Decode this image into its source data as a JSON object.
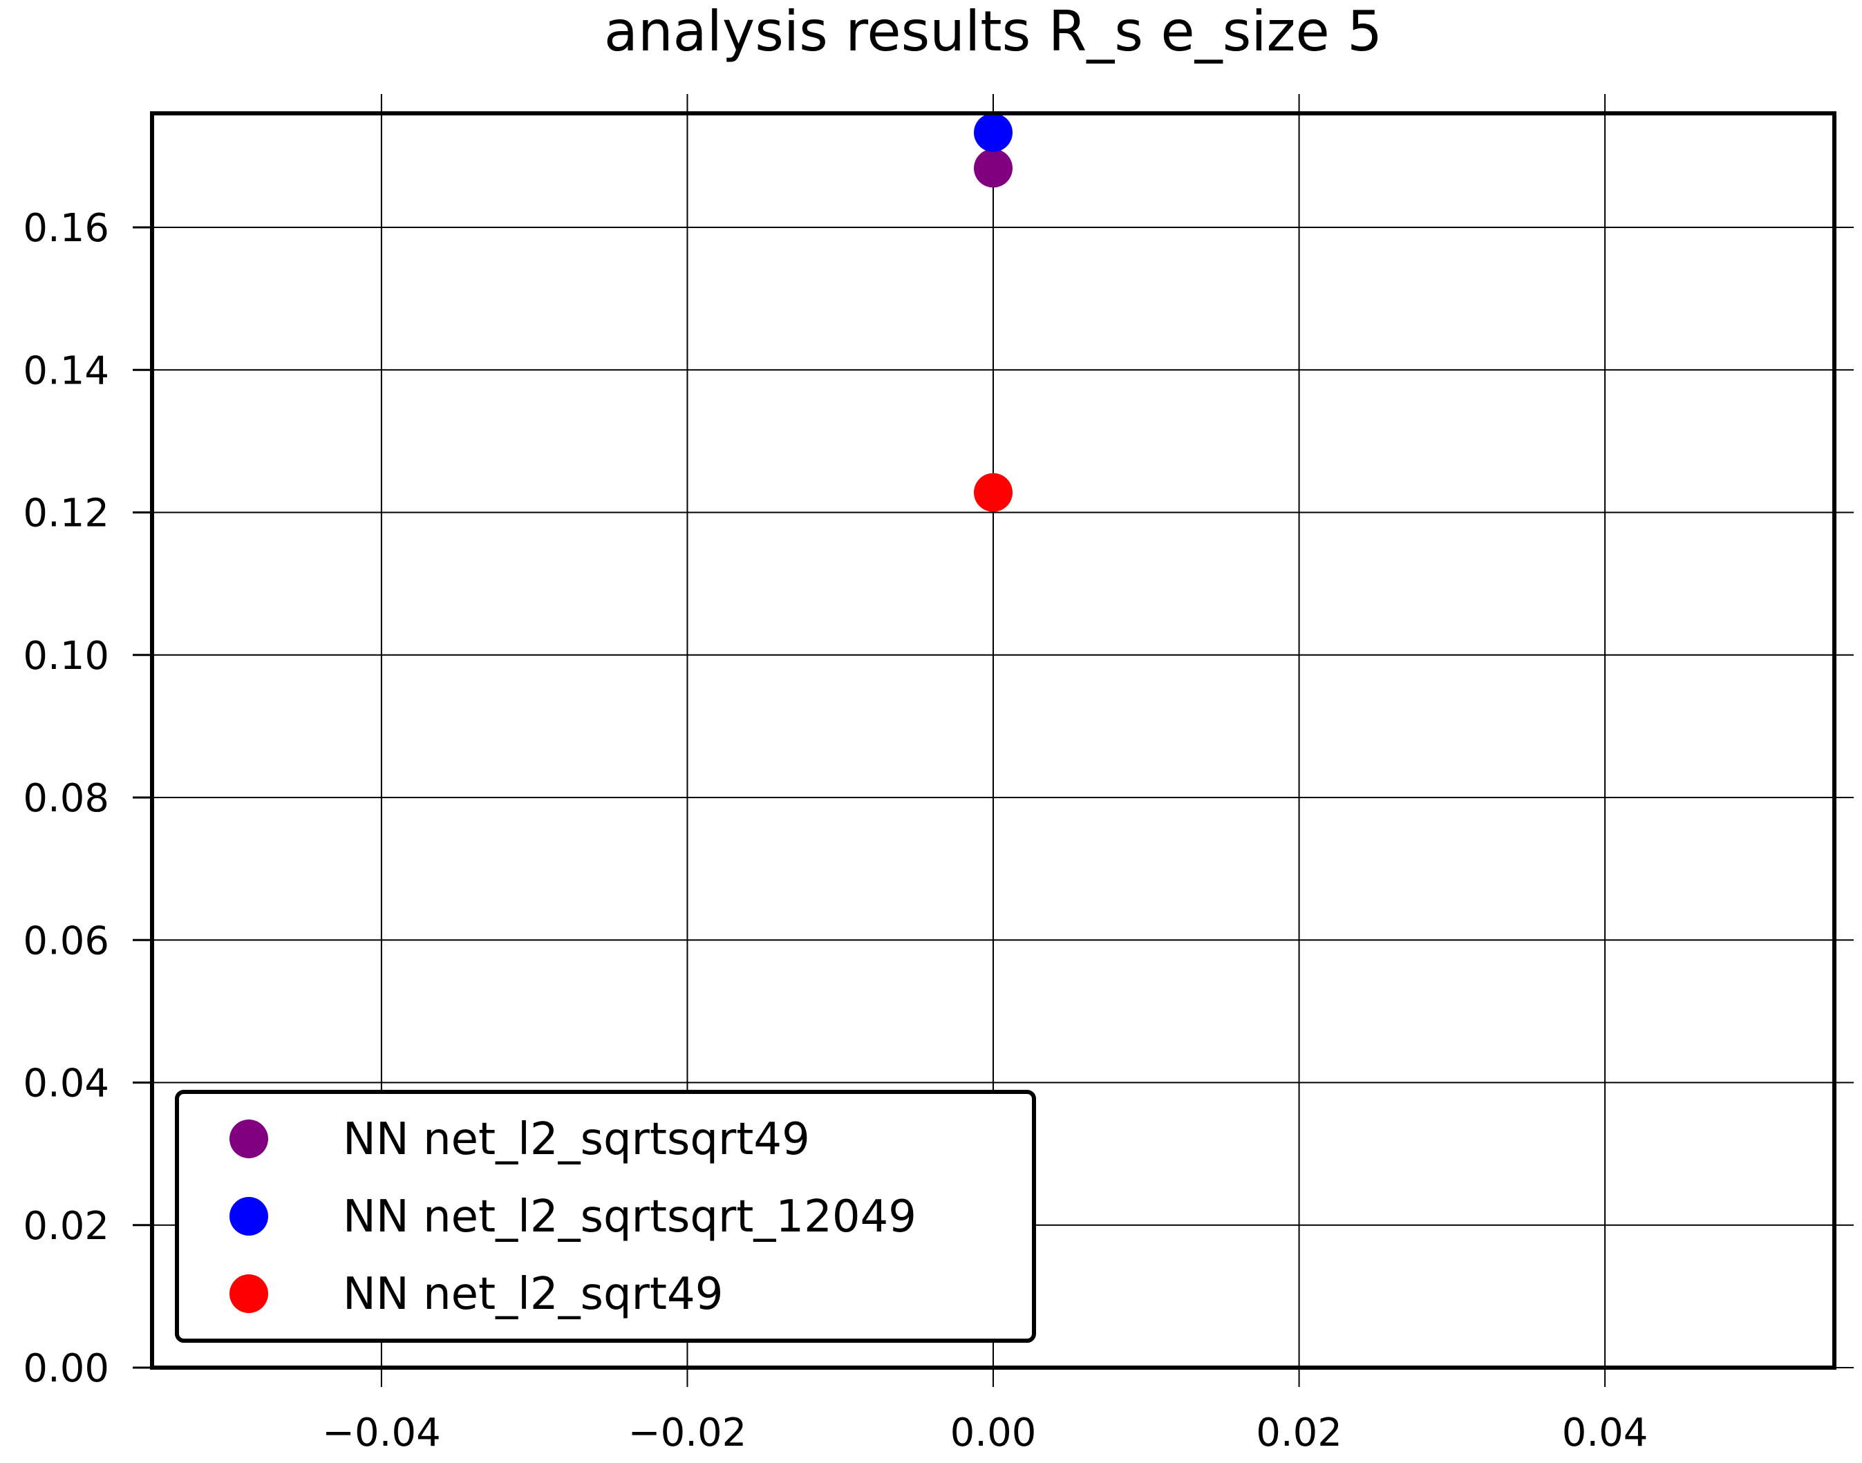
{
  "chart_data": {
    "type": "scatter",
    "title": "analysis results R_s  e_size 5",
    "xlabel": "",
    "ylabel": "",
    "xlim": [
      -0.055,
      0.055
    ],
    "ylim": [
      0.0,
      0.176
    ],
    "x_ticks": [
      -0.04,
      -0.02,
      0.0,
      0.02,
      0.04
    ],
    "x_tick_labels": [
      "−0.04",
      "−0.02",
      "0.00",
      "0.02",
      "0.04"
    ],
    "y_ticks": [
      0.0,
      0.02,
      0.04,
      0.06,
      0.08,
      0.1,
      0.12,
      0.14,
      0.16
    ],
    "y_tick_labels": [
      "0.00",
      "0.02",
      "0.04",
      "0.06",
      "0.08",
      "0.10",
      "0.12",
      "0.14",
      "0.16"
    ],
    "grid": true,
    "legend_position": "lower-left",
    "series": [
      {
        "name": "NN net_l2_sqrtsqrt49",
        "color": "#800080",
        "points": [
          {
            "x": 0.0,
            "y": 0.1683
          }
        ]
      },
      {
        "name": "NN net_l2_sqrtsqrt_12049",
        "color": "#0000ff",
        "points": [
          {
            "x": 0.0,
            "y": 0.1733
          }
        ]
      },
      {
        "name": "NN net_l2_sqrt49",
        "color": "#ff0000",
        "points": [
          {
            "x": 0.0,
            "y": 0.1228
          }
        ]
      }
    ]
  }
}
